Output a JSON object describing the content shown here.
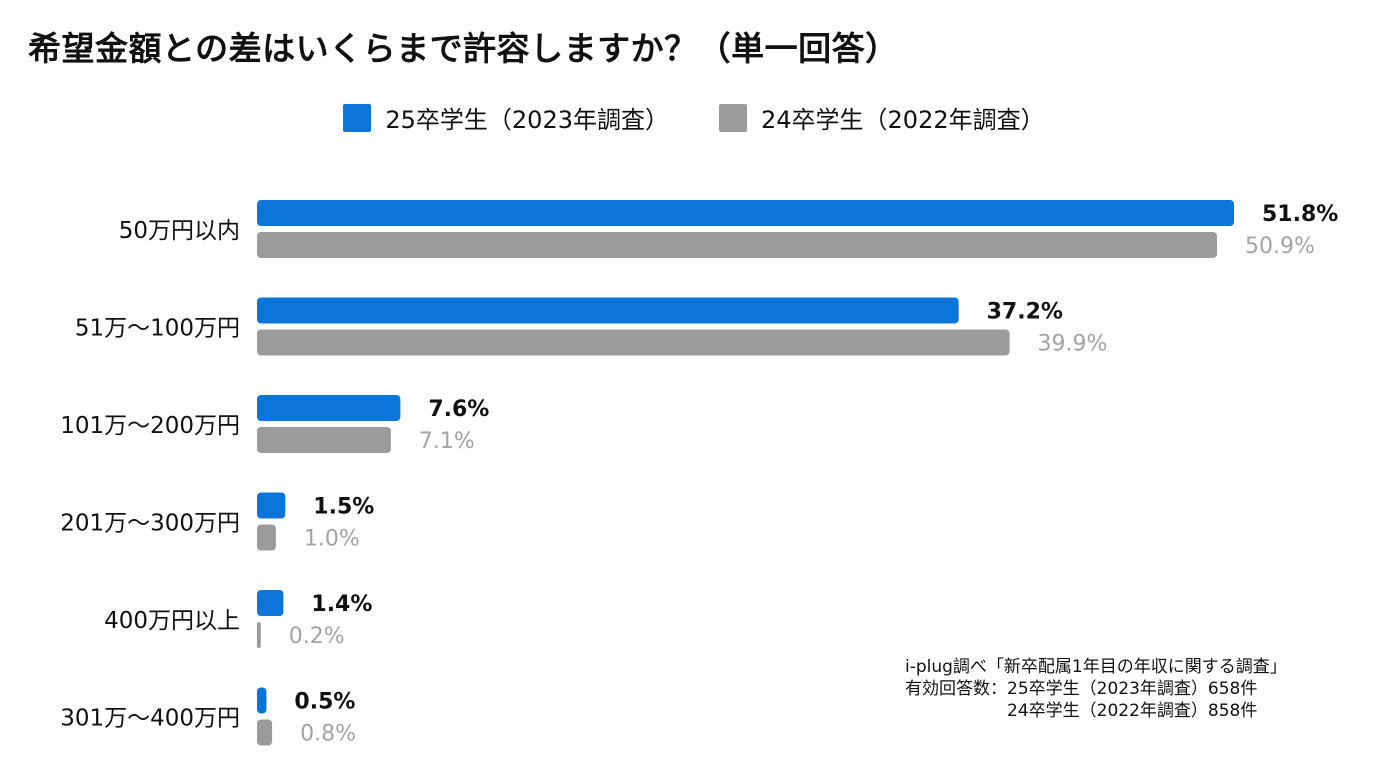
{
  "title": "希望金額との差はいくらまで許容しますか？（単一回答）",
  "colors": {
    "series1": "#0b75d9",
    "series2": "#9b9b9b",
    "label2": "#a3a3a3"
  },
  "chart_data": {
    "type": "bar",
    "orientation": "horizontal",
    "title": "希望金額との差はいくらまで許容しますか？（単一回答）",
    "categories": [
      "50万円以内",
      "51万～100万円",
      "101万～200万円",
      "201万～300万円",
      "400万円以上",
      "301万～400万円"
    ],
    "series": [
      {
        "name": "25卒学生（2023年調査）",
        "values": [
          51.8,
          37.2,
          7.6,
          1.5,
          1.4,
          0.5
        ]
      },
      {
        "name": "24卒学生（2022年調査）",
        "values": [
          50.9,
          39.9,
          7.1,
          1.0,
          0.2,
          0.8
        ]
      }
    ],
    "value_labels": [
      [
        "51.8%",
        "37.2%",
        "7.6%",
        "1.5%",
        "1.4%",
        "0.5%"
      ],
      [
        "50.9%",
        "39.9%",
        "7.1%",
        "1.0%",
        "0.2%",
        "0.8%"
      ]
    ],
    "unit": "%",
    "xlim": [
      0,
      51.8
    ],
    "legend": "top-center",
    "grid": false
  },
  "note": {
    "line1": "i-plug調べ「新卒配属1年目の年収に関する調査」",
    "line2": "有効回答数：25卒学生（2023年調査）658件",
    "line3": "　　　　　　24卒学生（2022年調査）858件"
  }
}
